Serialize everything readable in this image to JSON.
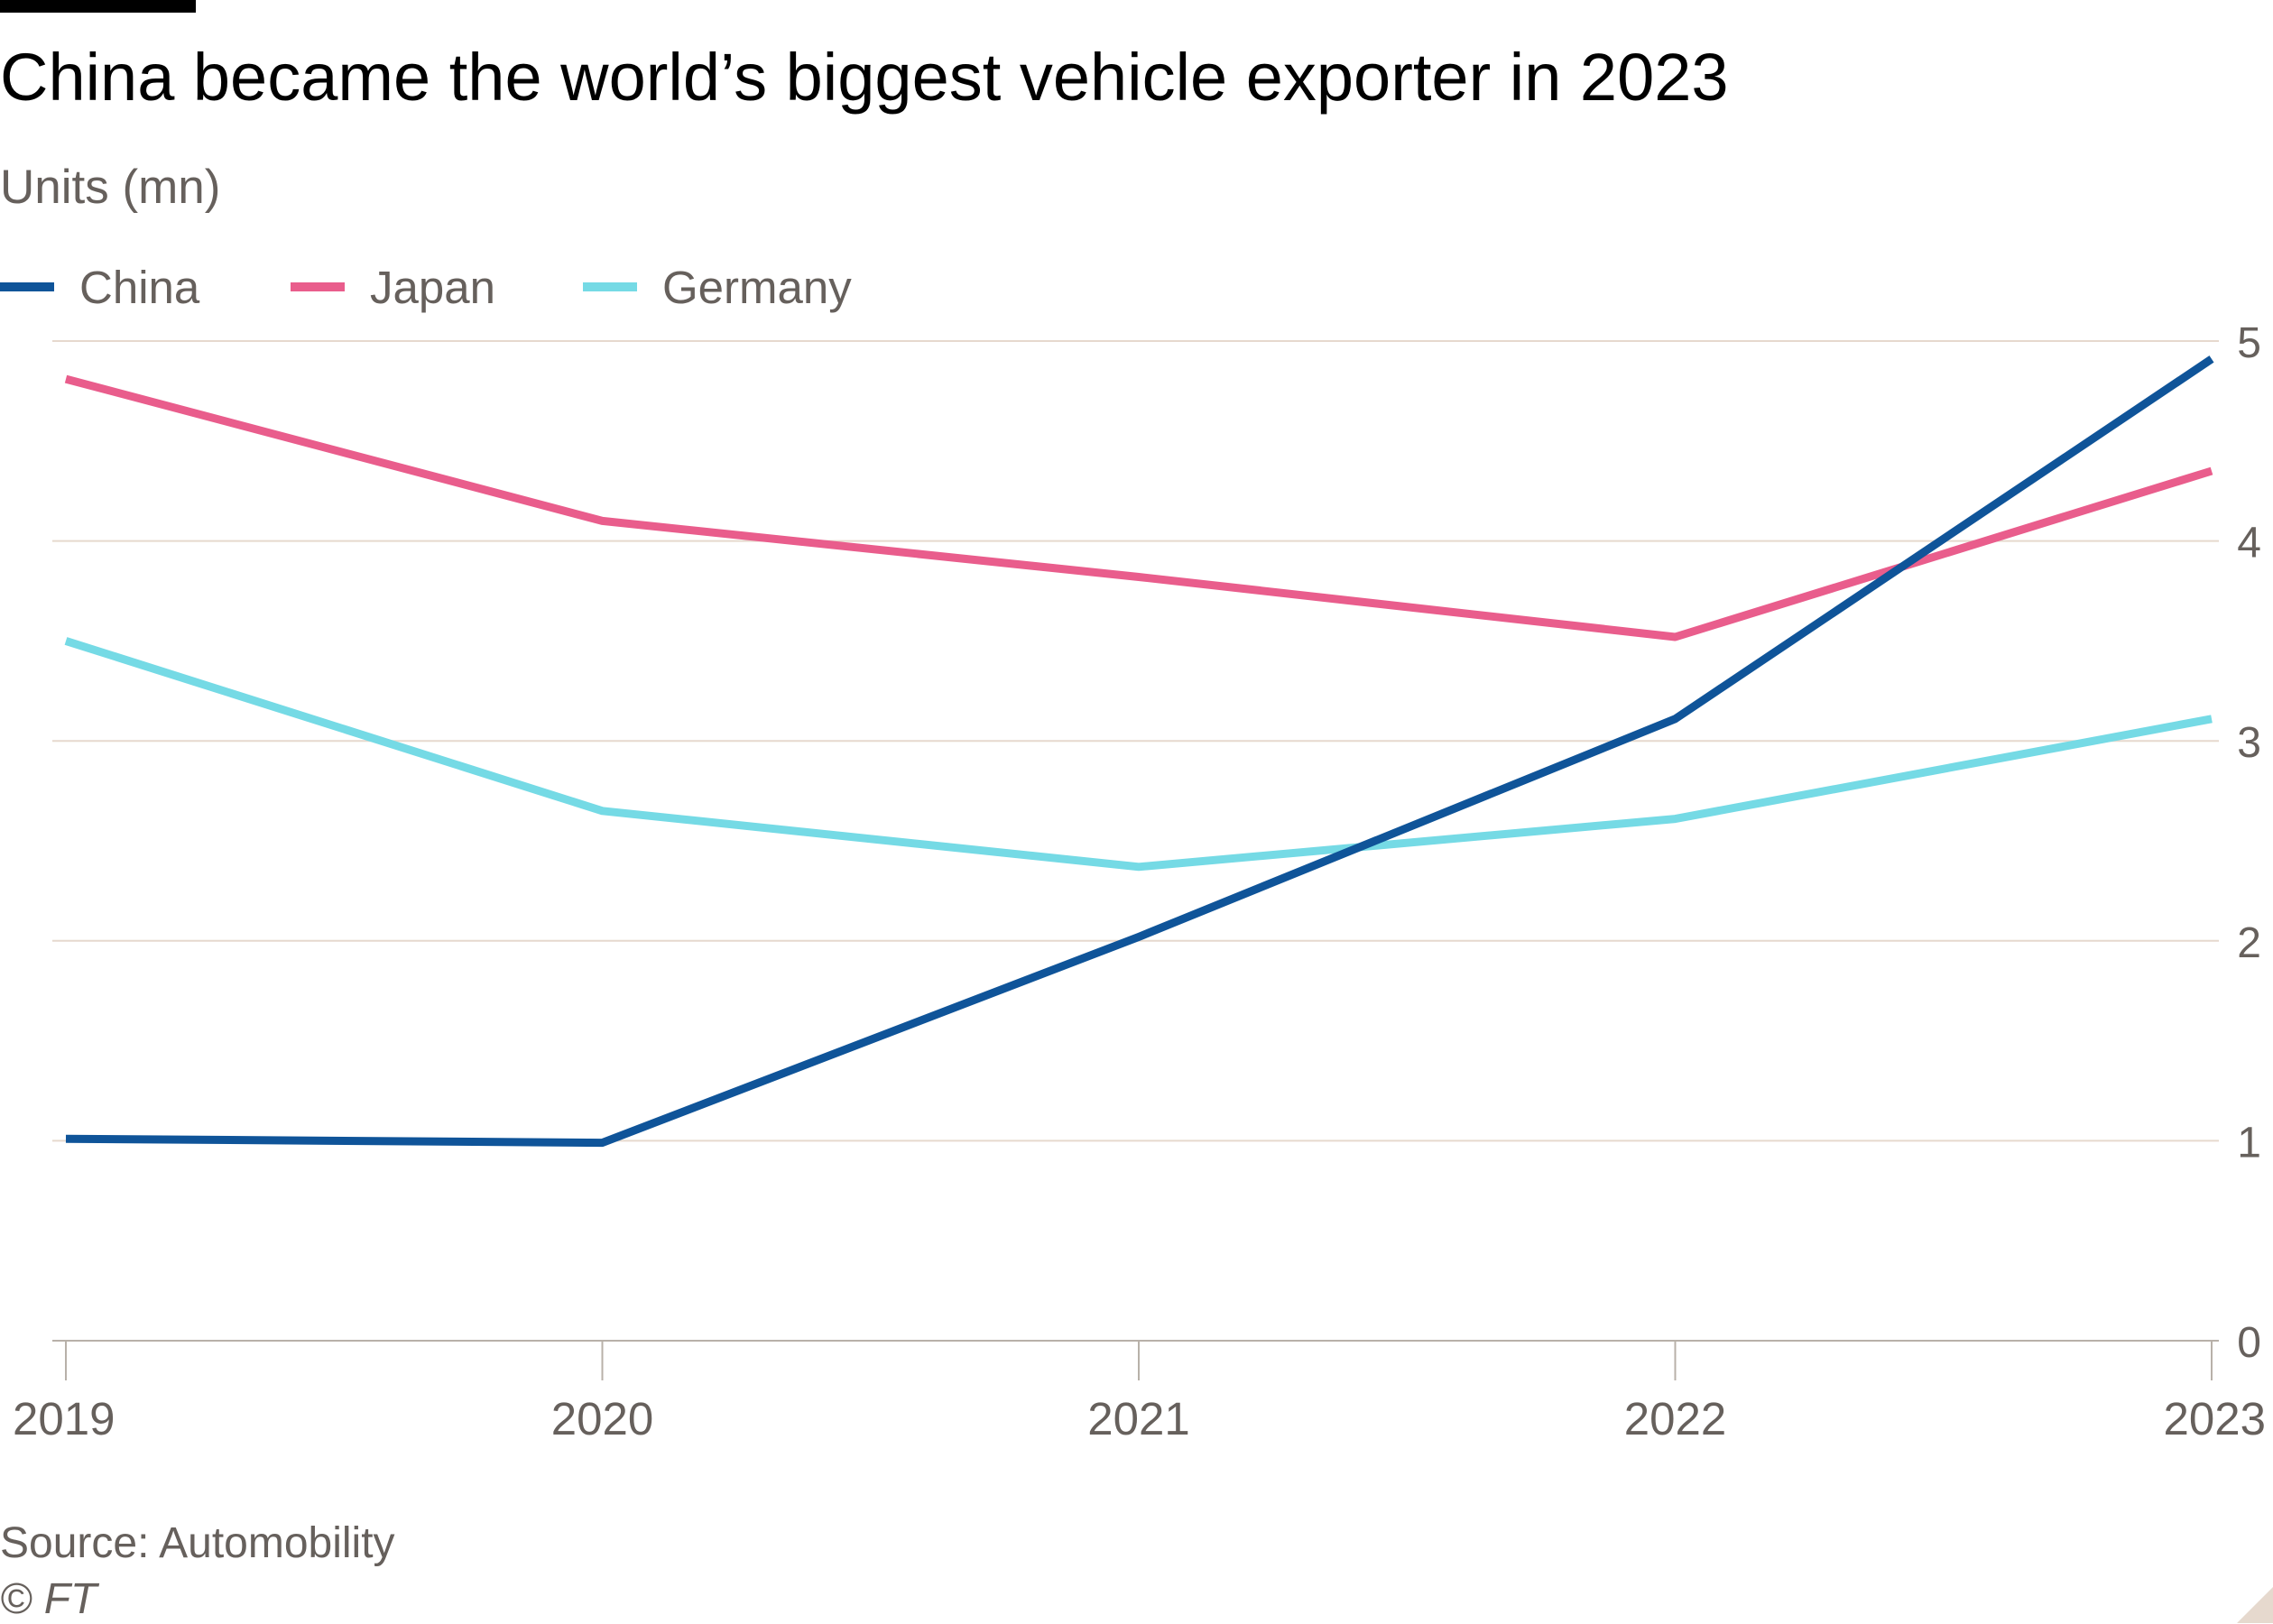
{
  "header": {
    "title": "China became the world’s biggest vehicle exporter in 2023",
    "subtitle": "Units (mn)"
  },
  "footer": {
    "source": "Source: Automobility",
    "copyright": "© FT"
  },
  "colors": {
    "china": "#0f5499",
    "japan": "#e95d8c",
    "germany": "#75dae5",
    "grid": "#e6d9ce",
    "axis": "#66605c",
    "text": "#66605c"
  },
  "chart_data": {
    "type": "line",
    "title": "China became the world’s biggest vehicle exporter in 2023",
    "subtitle": "Units (mn)",
    "ylabel": "Units (mn)",
    "xlabel": "",
    "x": [
      "2019",
      "2020",
      "2021",
      "2022",
      "2023"
    ],
    "ylim": [
      0,
      5
    ],
    "yticks": [
      0,
      1,
      2,
      3,
      4,
      5
    ],
    "y_axis_side": "right",
    "grid": true,
    "legend_position": "top-left",
    "series": [
      {
        "name": "China",
        "color": "#0f5499",
        "values": [
          1.01,
          0.99,
          2.02,
          3.11,
          4.91
        ]
      },
      {
        "name": "Japan",
        "color": "#e95d8c",
        "values": [
          4.81,
          4.1,
          3.82,
          3.52,
          4.35
        ]
      },
      {
        "name": "Germany",
        "color": "#75dae5",
        "values": [
          3.5,
          2.65,
          2.37,
          2.61,
          3.11
        ]
      }
    ]
  }
}
